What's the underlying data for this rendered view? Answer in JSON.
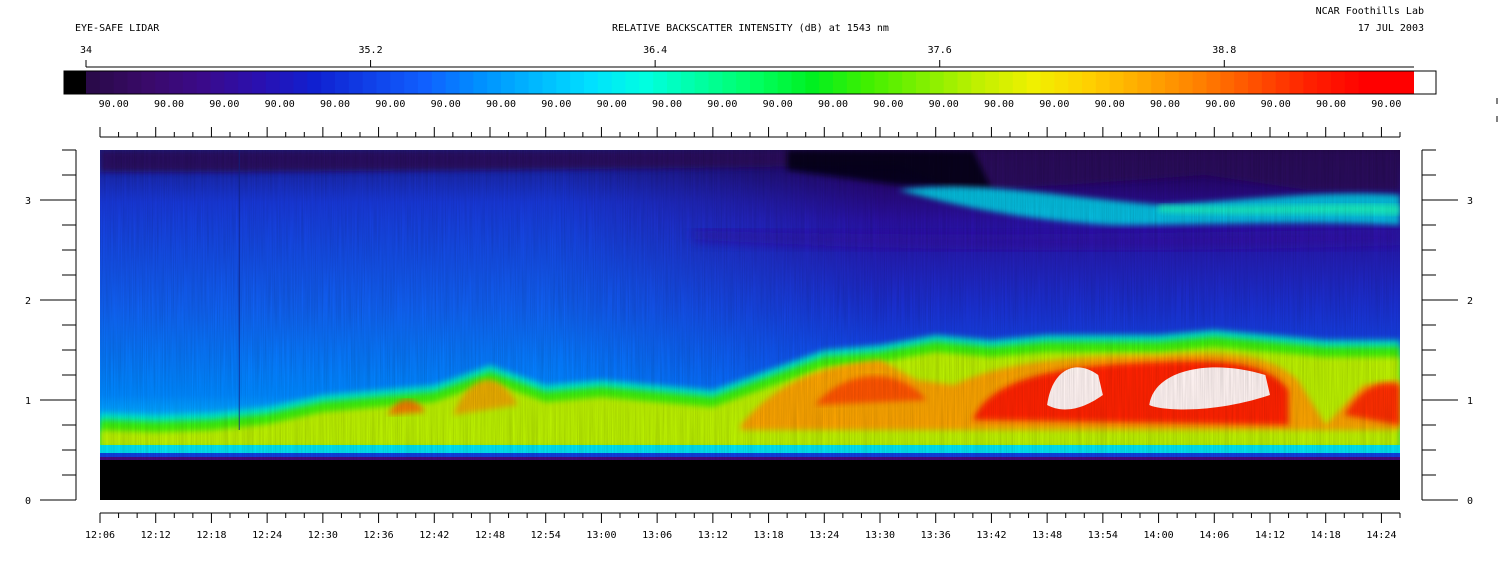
{
  "header": {
    "instrument": "EYE-SAFE LIDAR",
    "title": "RELATIVE BACKSCATTER INTENSITY (dB) at 1543 nm",
    "site": "NCAR Foothills Lab",
    "date": "17 JUL 2003"
  },
  "chart_data": {
    "type": "heatmap",
    "title": "RELATIVE BACKSCATTER INTENSITY (dB) at 1543 nm",
    "xlabel": "",
    "ylabel": "",
    "colorbar": {
      "range": [
        34,
        39.6
      ],
      "ticks": [
        "34",
        "35.2",
        "36.4",
        "37.6",
        "38.8"
      ],
      "tick_values": [
        34,
        35.2,
        36.4,
        37.6,
        38.8
      ],
      "sublabels": [
        "90.00",
        "90.00",
        "90.00",
        "90.00",
        "90.00",
        "90.00",
        "90.00",
        "90.00",
        "90.00",
        "90.00",
        "90.00",
        "90.00",
        "90.00",
        "90.00",
        "90.00",
        "90.00",
        "90.00",
        "90.00",
        "90.00",
        "90.00",
        "90.00",
        "90.00",
        "90.00",
        "90.00"
      ],
      "colors": [
        "#000000",
        "#2a0a4a",
        "#3a0a6a",
        "#3a0a8a",
        "#2a10b0",
        "#1020d0",
        "#1040e8",
        "#1060ff",
        "#0090ff",
        "#00b8ff",
        "#00e0ff",
        "#00ffe0",
        "#00ffa0",
        "#00ff60",
        "#00f020",
        "#40f000",
        "#80f000",
        "#c0f000",
        "#f0f000",
        "#ffd000",
        "#ffa800",
        "#ff8000",
        "#ff5000",
        "#ff2000",
        "#ff0000",
        "#ffffff"
      ]
    },
    "x_ticks": [
      "12:06",
      "12:12",
      "12:18",
      "12:24",
      "12:30",
      "12:36",
      "12:42",
      "12:48",
      "12:54",
      "13:00",
      "13:06",
      "13:12",
      "13:18",
      "13:24",
      "13:30",
      "13:36",
      "13:42",
      "13:48",
      "13:54",
      "14:00",
      "14:06",
      "14:12",
      "14:18",
      "14:24"
    ],
    "x_tick_minutes": [
      726,
      732,
      738,
      744,
      750,
      756,
      762,
      768,
      774,
      780,
      786,
      792,
      798,
      804,
      810,
      816,
      822,
      828,
      834,
      840,
      846,
      852,
      858,
      864
    ],
    "xlim_minutes": [
      726,
      866
    ],
    "y_ticks": [
      "0",
      "1",
      "2",
      "3"
    ],
    "y_tick_values": [
      0,
      1,
      2,
      3
    ],
    "ylim": [
      0,
      3.5
    ],
    "features": {
      "ground_top_km": 0.4,
      "boundary_layer_top_km": [
        [
          726,
          0.82
        ],
        [
          732,
          0.8
        ],
        [
          738,
          0.82
        ],
        [
          744,
          0.88
        ],
        [
          750,
          1.0
        ],
        [
          756,
          1.05
        ],
        [
          762,
          1.1
        ],
        [
          768,
          1.3
        ],
        [
          774,
          1.1
        ],
        [
          780,
          1.15
        ],
        [
          786,
          1.1
        ],
        [
          792,
          1.05
        ],
        [
          798,
          1.25
        ],
        [
          804,
          1.45
        ],
        [
          810,
          1.5
        ],
        [
          816,
          1.6
        ],
        [
          822,
          1.55
        ],
        [
          828,
          1.6
        ],
        [
          834,
          1.6
        ],
        [
          840,
          1.6
        ],
        [
          846,
          1.65
        ],
        [
          852,
          1.6
        ],
        [
          858,
          1.55
        ],
        [
          864,
          1.55
        ]
      ],
      "strong_echo_start_min": 795,
      "saturated_intervals_min": [
        [
          828,
          834
        ],
        [
          839,
          852
        ]
      ],
      "upper_layer_km": 3.0
    }
  }
}
